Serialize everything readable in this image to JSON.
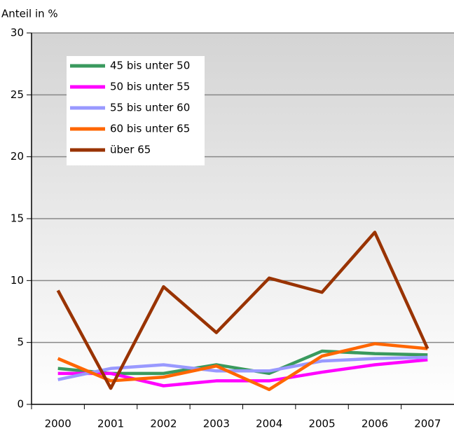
{
  "chart_data": {
    "type": "line",
    "y_label": "Anteil in %",
    "categories": [
      "2000",
      "2001",
      "2002",
      "2003",
      "2004",
      "2005",
      "2006",
      "2007"
    ],
    "series": [
      {
        "name": "45 bis unter 50",
        "color": "#3a9a5e",
        "values": [
          2.9,
          2.5,
          2.5,
          3.2,
          2.5,
          4.3,
          4.1,
          4.0
        ]
      },
      {
        "name": "50 bis unter 55",
        "color": "#ff00ff",
        "values": [
          2.5,
          2.5,
          1.5,
          1.9,
          1.9,
          2.6,
          3.2,
          3.6
        ]
      },
      {
        "name": "55 bis unter 60",
        "color": "#9999ff",
        "values": [
          2.0,
          2.9,
          3.2,
          2.7,
          2.7,
          3.5,
          3.7,
          3.8
        ]
      },
      {
        "name": "60 bis unter 65",
        "color": "#ff6600",
        "values": [
          3.7,
          1.9,
          2.2,
          3.1,
          1.2,
          3.9,
          4.9,
          4.5
        ]
      },
      {
        "name": "über 65",
        "color": "#993300",
        "values": [
          9.2,
          1.3,
          9.5,
          5.8,
          10.2,
          9.05,
          13.9,
          4.5
        ]
      }
    ],
    "ylim": [
      0,
      30
    ],
    "yticks": [
      0,
      5,
      10,
      15,
      20,
      25,
      30
    ],
    "grid": true,
    "legend": "upper left"
  }
}
